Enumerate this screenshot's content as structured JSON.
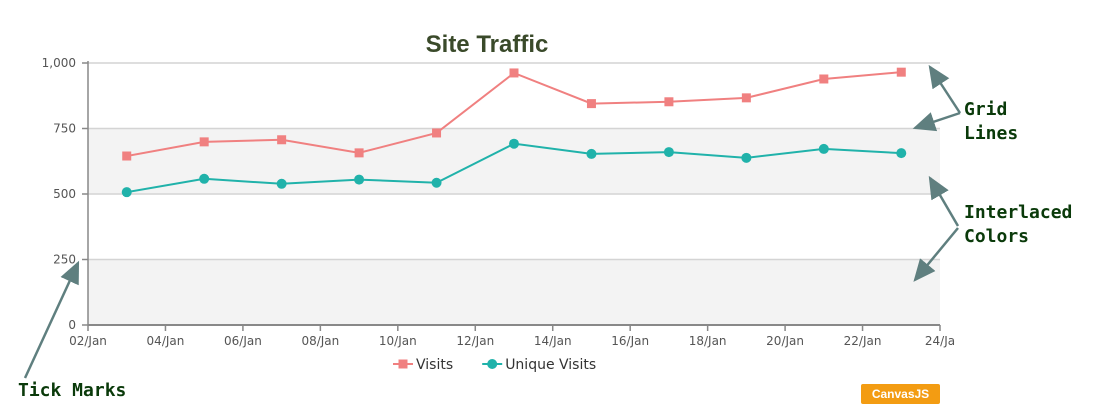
{
  "chart_data": {
    "type": "line",
    "title": "Site Traffic",
    "x_tick_labels": [
      "02/Jan",
      "04/Jan",
      "06/Jan",
      "08/Jan",
      "10/Jan",
      "12/Jan",
      "14/Jan",
      "16/Jan",
      "18/Jan",
      "20/Jan",
      "22/Jan",
      "24/Ja"
    ],
    "y_tick_labels": [
      "0",
      "250",
      "500",
      "750",
      "1,000"
    ],
    "ylim": [
      0,
      1000
    ],
    "xlim": [
      "02/Jan",
      "24/Jan"
    ],
    "x": [
      "03/Jan",
      "05/Jan",
      "07/Jan",
      "09/Jan",
      "11/Jan",
      "13/Jan",
      "15/Jan",
      "17/Jan",
      "19/Jan",
      "21/Jan",
      "23/Jan"
    ],
    "series": [
      {
        "name": "Visits",
        "color": "#f08080",
        "marker": "square",
        "values": [
          645,
          699,
          707,
          657,
          733,
          962,
          845,
          852,
          867,
          939,
          965
        ]
      },
      {
        "name": "Unique Visits",
        "color": "#20b2aa",
        "marker": "circle",
        "values": [
          507,
          558,
          539,
          555,
          543,
          692,
          653,
          660,
          638,
          672,
          656
        ]
      }
    ],
    "grid": true,
    "interlaced_colors": true,
    "legend_position": "bottom"
  },
  "annotations": {
    "grid_lines": "Grid\nLines",
    "interlaced_colors": "Interlaced\nColors",
    "tick_marks": "Tick Marks"
  },
  "badge": "CanvasJS"
}
